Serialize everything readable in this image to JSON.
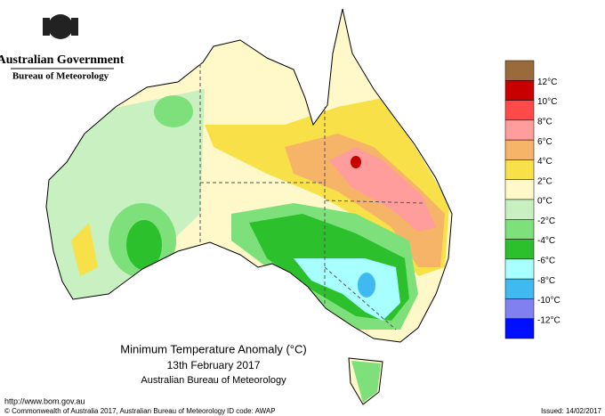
{
  "header": {
    "government": "Australian Government",
    "agency": "Bureau of Meteorology"
  },
  "title": {
    "line1": "Minimum Temperature Anomaly (°C)",
    "line2": "13th February 2017",
    "line3": "Australian Bureau of Meteorology"
  },
  "legend": {
    "colors": [
      "#9a6a3c",
      "#c80000",
      "#ff4a4a",
      "#ff9c9c",
      "#f6b468",
      "#f8e048",
      "#fff8c8",
      "#c8f0c0",
      "#7ee07a",
      "#2cc02c",
      "#a8ffff",
      "#40b8f0",
      "#8080f0",
      "#0010ff"
    ],
    "labels": [
      "12°C",
      "10°C",
      "8°C",
      "6°C",
      "4°C",
      "2°C",
      "0°C",
      "-2°C",
      "-4°C",
      "-6°C",
      "-8°C",
      "-10°C",
      "-12°C"
    ]
  },
  "footer": {
    "url": "http://www.bom.gov.au",
    "copyright": "© Commonwealth of Australia 2017, Australian Bureau of Meteorology",
    "id_code": "ID code: AWAP",
    "issued": "Issued: 14/02/2017"
  }
}
